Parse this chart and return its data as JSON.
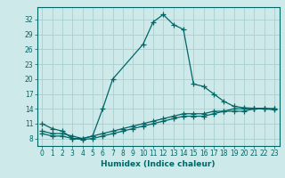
{
  "title": "",
  "xlabel": "Humidex (Indice chaleur)",
  "ylabel": "",
  "bg_color": "#cee9e9",
  "line_color": "#006666",
  "grid_color": "#aacfcf",
  "x_ticks": [
    0,
    1,
    2,
    3,
    4,
    5,
    6,
    7,
    8,
    9,
    10,
    11,
    12,
    13,
    14,
    15,
    16,
    17,
    18,
    19,
    20,
    21,
    22,
    23
  ],
  "y_ticks": [
    8,
    11,
    14,
    17,
    20,
    23,
    26,
    29,
    32
  ],
  "xlim": [
    -0.5,
    23.5
  ],
  "ylim": [
    6.5,
    34.5
  ],
  "line1_x": [
    0,
    1,
    2,
    3,
    4,
    5,
    6,
    7,
    10,
    11,
    12,
    13,
    14,
    15,
    16,
    17,
    18,
    19,
    20,
    21,
    22,
    23
  ],
  "line1_y": [
    11.0,
    10.0,
    9.5,
    8.0,
    8.0,
    8.5,
    14.0,
    20.0,
    27.0,
    31.5,
    33.0,
    31.0,
    30.0,
    19.0,
    18.5,
    17.0,
    15.5,
    14.5,
    14.2,
    14.1,
    14.1,
    14.0
  ],
  "line2_x": [
    0,
    1,
    2,
    3,
    4,
    5,
    6,
    7,
    8,
    9,
    10,
    11,
    12,
    13,
    14,
    15,
    16,
    17,
    18,
    19,
    20,
    21,
    22,
    23
  ],
  "line2_y": [
    9.5,
    9.0,
    9.0,
    8.5,
    8.0,
    8.5,
    9.0,
    9.5,
    10.0,
    10.5,
    11.0,
    11.5,
    12.0,
    12.5,
    13.0,
    13.0,
    13.0,
    13.5,
    13.5,
    14.0,
    14.0,
    14.0,
    14.0,
    14.0
  ],
  "line3_x": [
    0,
    1,
    2,
    3,
    4,
    5,
    6,
    7,
    8,
    9,
    10,
    11,
    12,
    13,
    14,
    15,
    16,
    17,
    18,
    19,
    20,
    21,
    22,
    23
  ],
  "line3_y": [
    9.0,
    8.5,
    8.5,
    8.0,
    7.8,
    8.0,
    8.5,
    9.0,
    9.5,
    10.0,
    10.5,
    11.0,
    11.5,
    12.0,
    12.5,
    12.5,
    12.5,
    13.0,
    13.5,
    13.5,
    13.5,
    14.0,
    14.0,
    13.8
  ],
  "tick_fontsize": 5.5,
  "xlabel_fontsize": 6.5
}
